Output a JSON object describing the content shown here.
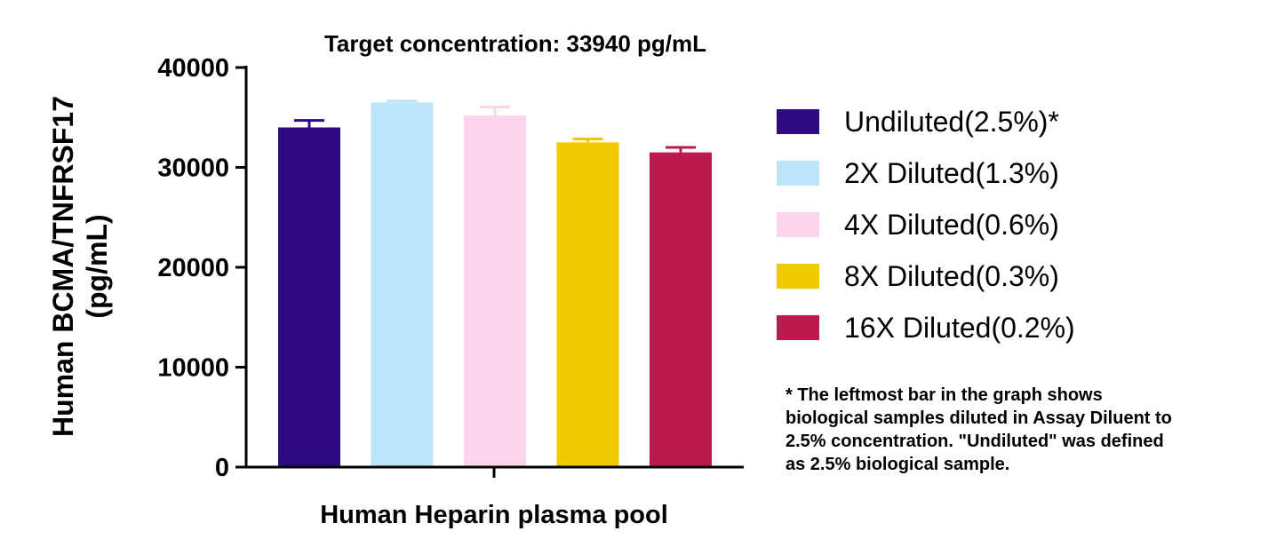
{
  "chart_data": {
    "type": "bar",
    "title": "Target concentration: 33940 pg/mL",
    "xlabel": "Human Heparin plasma pool",
    "ylabel_line1": "Human BCMA/TNFRSF17",
    "ylabel_line2": "(pg/mL)",
    "ylim": [
      0,
      40000
    ],
    "yticks": [
      "0",
      "10000",
      "20000",
      "30000",
      "40000"
    ],
    "grid": false,
    "legend_position": "right",
    "series": [
      {
        "name": "Undiluted(2.5%)*",
        "value": 34000,
        "error": 700,
        "color": "#2e0a80"
      },
      {
        "name": "2X Diluted(1.3%)",
        "value": 36500,
        "error": 150,
        "color": "#bde5f9"
      },
      {
        "name": "4X Diluted(0.6%)",
        "value": 35200,
        "error": 850,
        "color": "#fdd4ec"
      },
      {
        "name": "8X Diluted(0.3%)",
        "value": 32500,
        "error": 350,
        "color": "#f2c800"
      },
      {
        "name": "16X Diluted(0.2%)",
        "value": 31500,
        "error": 500,
        "color": "#bb1a4d"
      }
    ]
  },
  "footnote": {
    "line1": "* The leftmost bar in the graph shows",
    "line2": "biological samples diluted in Assay Diluent to",
    "line3": "2.5% concentration. \"Undiluted\" was defined",
    "line4": "as 2.5% biological sample."
  }
}
